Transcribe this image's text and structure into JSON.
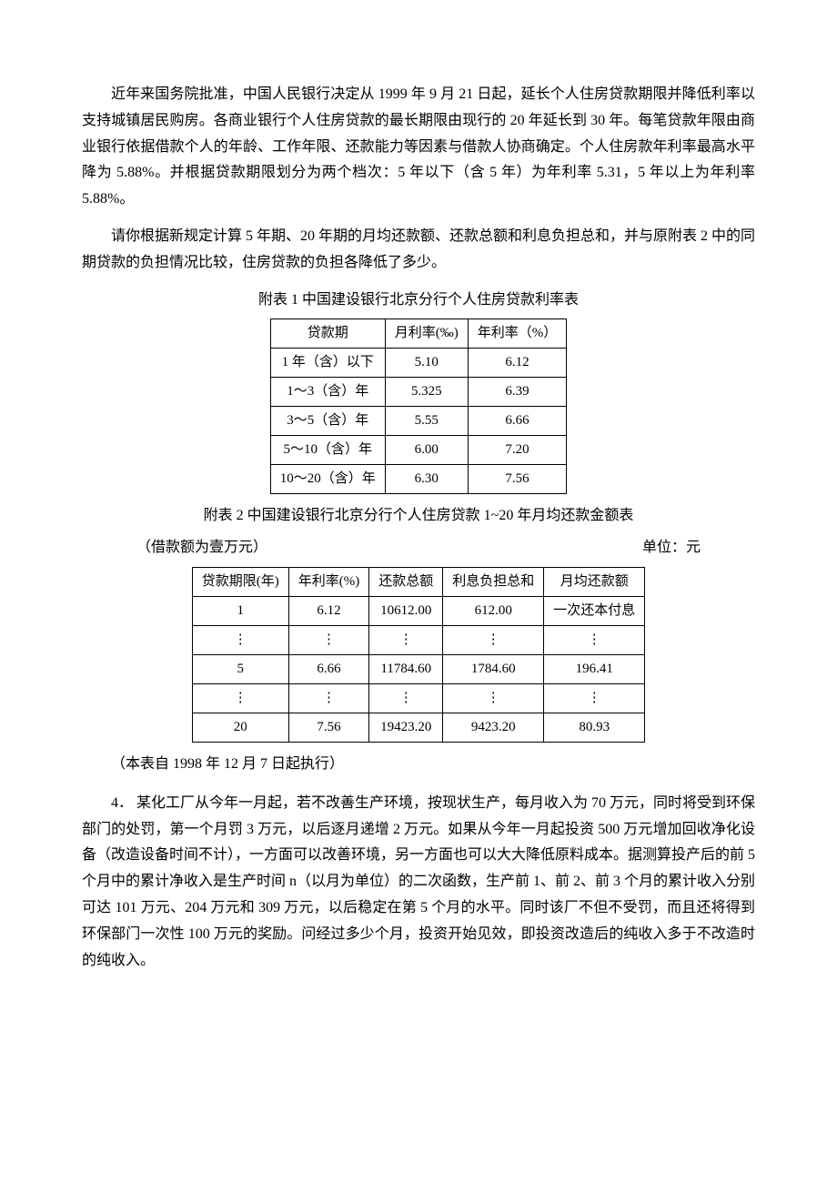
{
  "para1": "近年来国务院批准，中国人民银行决定从 1999 年 9 月 21 日起，延长个人住房贷款期限并降低利率以支持城镇居民购房。各商业银行个人住房贷款的最长期限由现行的 20 年延长到 30 年。每笔贷款年限由商业银行依据借款个人的年龄、工作年限、还款能力等因素与借款人协商确定。个人住房款年利率最高水平降为 5.88%。并根据贷款期限划分为两个档次：5 年以下（含 5 年）为年利率 5.31，5 年以上为年利率 5.88%。",
  "para2": "请你根据新规定计算 5 年期、20 年期的月均还款额、还款总额和利息负担总和，并与原附表 2 中的同期贷款的负担情况比较，住房贷款的负担各降低了多少。",
  "table1": {
    "title": "附表 1  中国建设银行北京分行个人住房贷款利率表",
    "columns": [
      "贷款期",
      "月利率(‰)",
      "年利率（%）"
    ],
    "rows": [
      [
        "1 年（含）以下",
        "5.10",
        "6.12"
      ],
      [
        "1～3（含）年",
        "5.325",
        "6.39"
      ],
      [
        "3～5（含）年",
        "5.55",
        "6.66"
      ],
      [
        "5～10（含）年",
        "6.00",
        "7.20"
      ],
      [
        "10～20（含）年",
        "6.30",
        "7.56"
      ]
    ]
  },
  "table2": {
    "title": "附表 2  中国建设银行北京分行个人住房贷款 1~20 年月均还款金额表",
    "subnote_left": "（借款额为壹万元）",
    "subnote_right": "单位：元",
    "columns": [
      "贷款期限(年)",
      "年利率(%)",
      "还款总额",
      "利息负担总和",
      "月均还款额"
    ],
    "rows": [
      [
        "1",
        "6.12",
        "10612.00",
        "612.00",
        "一次还本付息"
      ],
      [
        "⋮",
        "⋮",
        "⋮",
        "⋮",
        "⋮"
      ],
      [
        "5",
        "6.66",
        "11784.60",
        "1784.60",
        "196.41"
      ],
      [
        "⋮",
        "⋮",
        "⋮",
        "⋮",
        "⋮"
      ],
      [
        "20",
        "7.56",
        "19423.20",
        "9423.20",
        "80.93"
      ]
    ],
    "footnote": "（本表自 1998 年 12 月 7 日起执行）"
  },
  "para3": "4．  某化工厂从今年一月起，若不改善生产环境，按现状生产，每月收入为 70 万元，同时将受到环保部门的处罚，第一个月罚 3 万元，以后逐月递增 2 万元。如果从今年一月起投资 500 万元增加回收净化设备（改造设备时间不计），一方面可以改善环境，另一方面也可以大大降低原料成本。据测算投产后的前 5 个月中的累计净收入是生产时间 n（以月为单位）的二次函数，生产前 1、前 2、前 3 个月的累计收入分别可达 101 万元、204 万元和 309 万元，以后稳定在第 5 个月的水平。同时该厂不但不受罚，而且还将得到环保部门一次性 100 万元的奖励。问经过多少个月，投资开始见效，即投资改造后的纯收入多于不改造时的纯收入。"
}
